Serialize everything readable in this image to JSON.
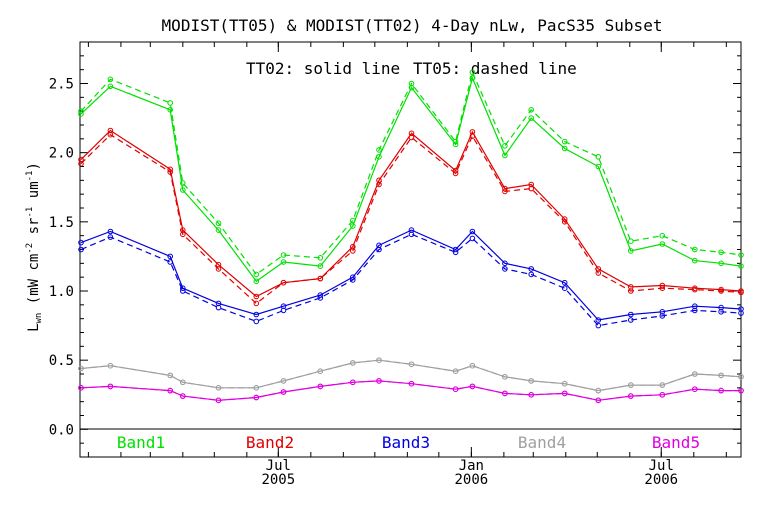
{
  "chart_data": {
    "type": "line",
    "title": "MODIST(TT05) & MODIST(TT02) 4-Day nLw, PacS35 Subset",
    "annotation": {
      "solid": "TT02: solid line",
      "dashed": "TT05: dashed line"
    },
    "ylabel": {
      "base": "L",
      "sub": "wn",
      "parts": [
        {
          "text": " (mW cm",
          "sup": false
        },
        {
          "text": "-2",
          "sup": true
        },
        {
          "text": " sr",
          "sup": false
        },
        {
          "text": "-1",
          "sup": true
        },
        {
          "text": " um",
          "sup": false
        },
        {
          "text": "-1",
          "sup": true
        },
        {
          "text": ")",
          "sup": false
        }
      ]
    },
    "ylim": [
      -0.2,
      2.8
    ],
    "yticks": [
      0.0,
      0.5,
      1.0,
      1.5,
      2.0,
      2.5
    ],
    "ytick_labels": [
      "0.0",
      "0.5",
      "1.0",
      "1.5",
      "2.0",
      "2.5"
    ],
    "xlim": [
      "2004-12-24",
      "2006-09-15"
    ],
    "xticks": [
      {
        "date": "2005-07-01",
        "label": "Jul",
        "year": "2005"
      },
      {
        "date": "2006-01-01",
        "label": "Jan",
        "year": "2006"
      },
      {
        "date": "2006-07-01",
        "label": "Jul",
        "year": "2006"
      }
    ],
    "grid": false,
    "x": [
      "2004-12-25",
      "2005-01-22",
      "2005-03-20",
      "2005-04-01",
      "2005-05-05",
      "2005-06-10",
      "2005-07-06",
      "2005-08-10",
      "2005-09-10",
      "2005-10-05",
      "2005-11-05",
      "2005-12-17",
      "2006-01-02",
      "2006-02-02",
      "2006-02-27",
      "2006-03-31",
      "2006-05-02",
      "2006-06-02",
      "2006-07-02",
      "2006-08-02",
      "2006-08-27",
      "2006-09-15"
    ],
    "series": [
      {
        "name": "Band1",
        "color": "#00e000",
        "tt02": [
          2.28,
          2.48,
          2.31,
          1.73,
          1.44,
          1.07,
          1.21,
          1.18,
          1.47,
          1.97,
          2.47,
          2.06,
          2.54,
          1.98,
          2.25,
          2.03,
          1.9,
          1.29,
          1.34,
          1.22,
          1.2,
          1.18
        ],
        "tt05": [
          2.3,
          2.53,
          2.36,
          1.78,
          1.49,
          1.12,
          1.26,
          1.24,
          1.51,
          2.02,
          2.5,
          2.08,
          2.58,
          2.05,
          2.31,
          2.08,
          1.97,
          1.36,
          1.4,
          1.3,
          1.28,
          1.26
        ]
      },
      {
        "name": "Band2",
        "color": "#e00000",
        "tt02": [
          1.95,
          2.16,
          1.88,
          1.44,
          1.19,
          0.96,
          1.06,
          1.09,
          1.32,
          1.8,
          2.14,
          1.87,
          2.15,
          1.74,
          1.77,
          1.52,
          1.16,
          1.03,
          1.04,
          1.02,
          1.01,
          1.0
        ],
        "tt05": [
          1.92,
          2.13,
          1.86,
          1.41,
          1.16,
          0.91,
          1.06,
          1.09,
          1.29,
          1.77,
          2.11,
          1.85,
          2.12,
          1.72,
          1.74,
          1.5,
          1.13,
          1.0,
          1.02,
          1.01,
          1.0,
          0.99
        ]
      },
      {
        "name": "Band3",
        "color": "#0000e0",
        "tt02": [
          1.35,
          1.43,
          1.25,
          1.02,
          0.91,
          0.83,
          0.89,
          0.97,
          1.1,
          1.33,
          1.44,
          1.3,
          1.43,
          1.2,
          1.16,
          1.06,
          0.79,
          0.83,
          0.85,
          0.89,
          0.88,
          0.87
        ],
        "tt05": [
          1.3,
          1.39,
          1.21,
          1.0,
          0.88,
          0.78,
          0.86,
          0.95,
          1.08,
          1.3,
          1.41,
          1.28,
          1.38,
          1.16,
          1.12,
          1.02,
          0.75,
          0.79,
          0.82,
          0.86,
          0.85,
          0.84
        ]
      },
      {
        "name": "Band4",
        "color": "#a0a0a0",
        "tt02": [
          0.44,
          0.46,
          0.39,
          0.34,
          0.3,
          0.3,
          0.35,
          0.42,
          0.48,
          0.5,
          0.47,
          0.42,
          0.46,
          0.38,
          0.35,
          0.33,
          0.28,
          0.32,
          0.32,
          0.4,
          0.39,
          0.38
        ],
        "tt05": [
          0.44,
          0.46,
          0.39,
          0.34,
          0.3,
          0.3,
          0.35,
          0.42,
          0.48,
          0.5,
          0.47,
          0.42,
          0.46,
          0.38,
          0.35,
          0.33,
          0.28,
          0.32,
          0.32,
          0.4,
          0.39,
          0.38
        ]
      },
      {
        "name": "Band5",
        "color": "#e000e0",
        "tt02": [
          0.3,
          0.31,
          0.28,
          0.24,
          0.21,
          0.23,
          0.27,
          0.31,
          0.34,
          0.35,
          0.33,
          0.29,
          0.31,
          0.26,
          0.25,
          0.26,
          0.21,
          0.24,
          0.25,
          0.29,
          0.28,
          0.28
        ],
        "tt05": [
          0.3,
          0.31,
          0.28,
          0.24,
          0.21,
          0.23,
          0.27,
          0.31,
          0.34,
          0.35,
          0.33,
          0.29,
          0.31,
          0.26,
          0.25,
          0.26,
          0.21,
          0.24,
          0.25,
          0.29,
          0.28,
          0.28
        ]
      }
    ]
  }
}
